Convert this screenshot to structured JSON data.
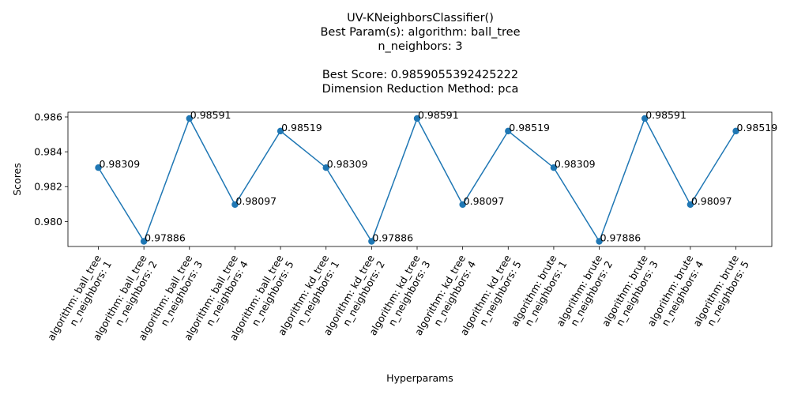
{
  "chart_data": {
    "type": "line",
    "title": [
      "UV-KNeighborsClassifier()",
      "Best Param(s): algorithm: ball_tree",
      "n_neighbors: 3",
      "",
      "Best Score: 0.9859055392425222",
      "Dimension Reduction Method: pca"
    ],
    "xlabel": "Hyperparams",
    "ylabel": "Scores",
    "categories": [
      [
        "algorithm: ball_tree",
        "n_neighbors: 1"
      ],
      [
        "algorithm: ball_tree",
        "n_neighbors: 2"
      ],
      [
        "algorithm: ball_tree",
        "n_neighbors: 3"
      ],
      [
        "algorithm: ball_tree",
        "n_neighbors: 4"
      ],
      [
        "algorithm: ball_tree",
        "n_neighbors: 5"
      ],
      [
        "algorithm: kd_tree",
        "n_neighbors: 1"
      ],
      [
        "algorithm: kd_tree",
        "n_neighbors: 2"
      ],
      [
        "algorithm: kd_tree",
        "n_neighbors: 3"
      ],
      [
        "algorithm: kd_tree",
        "n_neighbors: 4"
      ],
      [
        "algorithm: kd_tree",
        "n_neighbors: 5"
      ],
      [
        "algorithm: brute",
        "n_neighbors: 1"
      ],
      [
        "algorithm: brute",
        "n_neighbors: 2"
      ],
      [
        "algorithm: brute",
        "n_neighbors: 3"
      ],
      [
        "algorithm: brute",
        "n_neighbors: 4"
      ],
      [
        "algorithm: brute",
        "n_neighbors: 5"
      ]
    ],
    "values": [
      0.98309,
      0.97886,
      0.98591,
      0.98097,
      0.98519,
      0.98309,
      0.97886,
      0.98591,
      0.98097,
      0.98519,
      0.98309,
      0.97886,
      0.98591,
      0.98097,
      0.98519
    ],
    "data_labels": [
      "0.98309",
      "0.97886",
      "0.98591",
      "0.98097",
      "0.98519",
      "0.98309",
      "0.97886",
      "0.98591",
      "0.98097",
      "0.98519",
      "0.98309",
      "0.97886",
      "0.98591",
      "0.98097",
      "0.98519"
    ],
    "yticks": [
      0.98,
      0.982,
      0.984,
      0.986
    ],
    "ytick_labels": [
      "0.980",
      "0.982",
      "0.984",
      "0.986"
    ],
    "ylim": [
      0.97886,
      0.98591
    ],
    "grid": false,
    "legend": "none",
    "color": "#1f77b4"
  }
}
